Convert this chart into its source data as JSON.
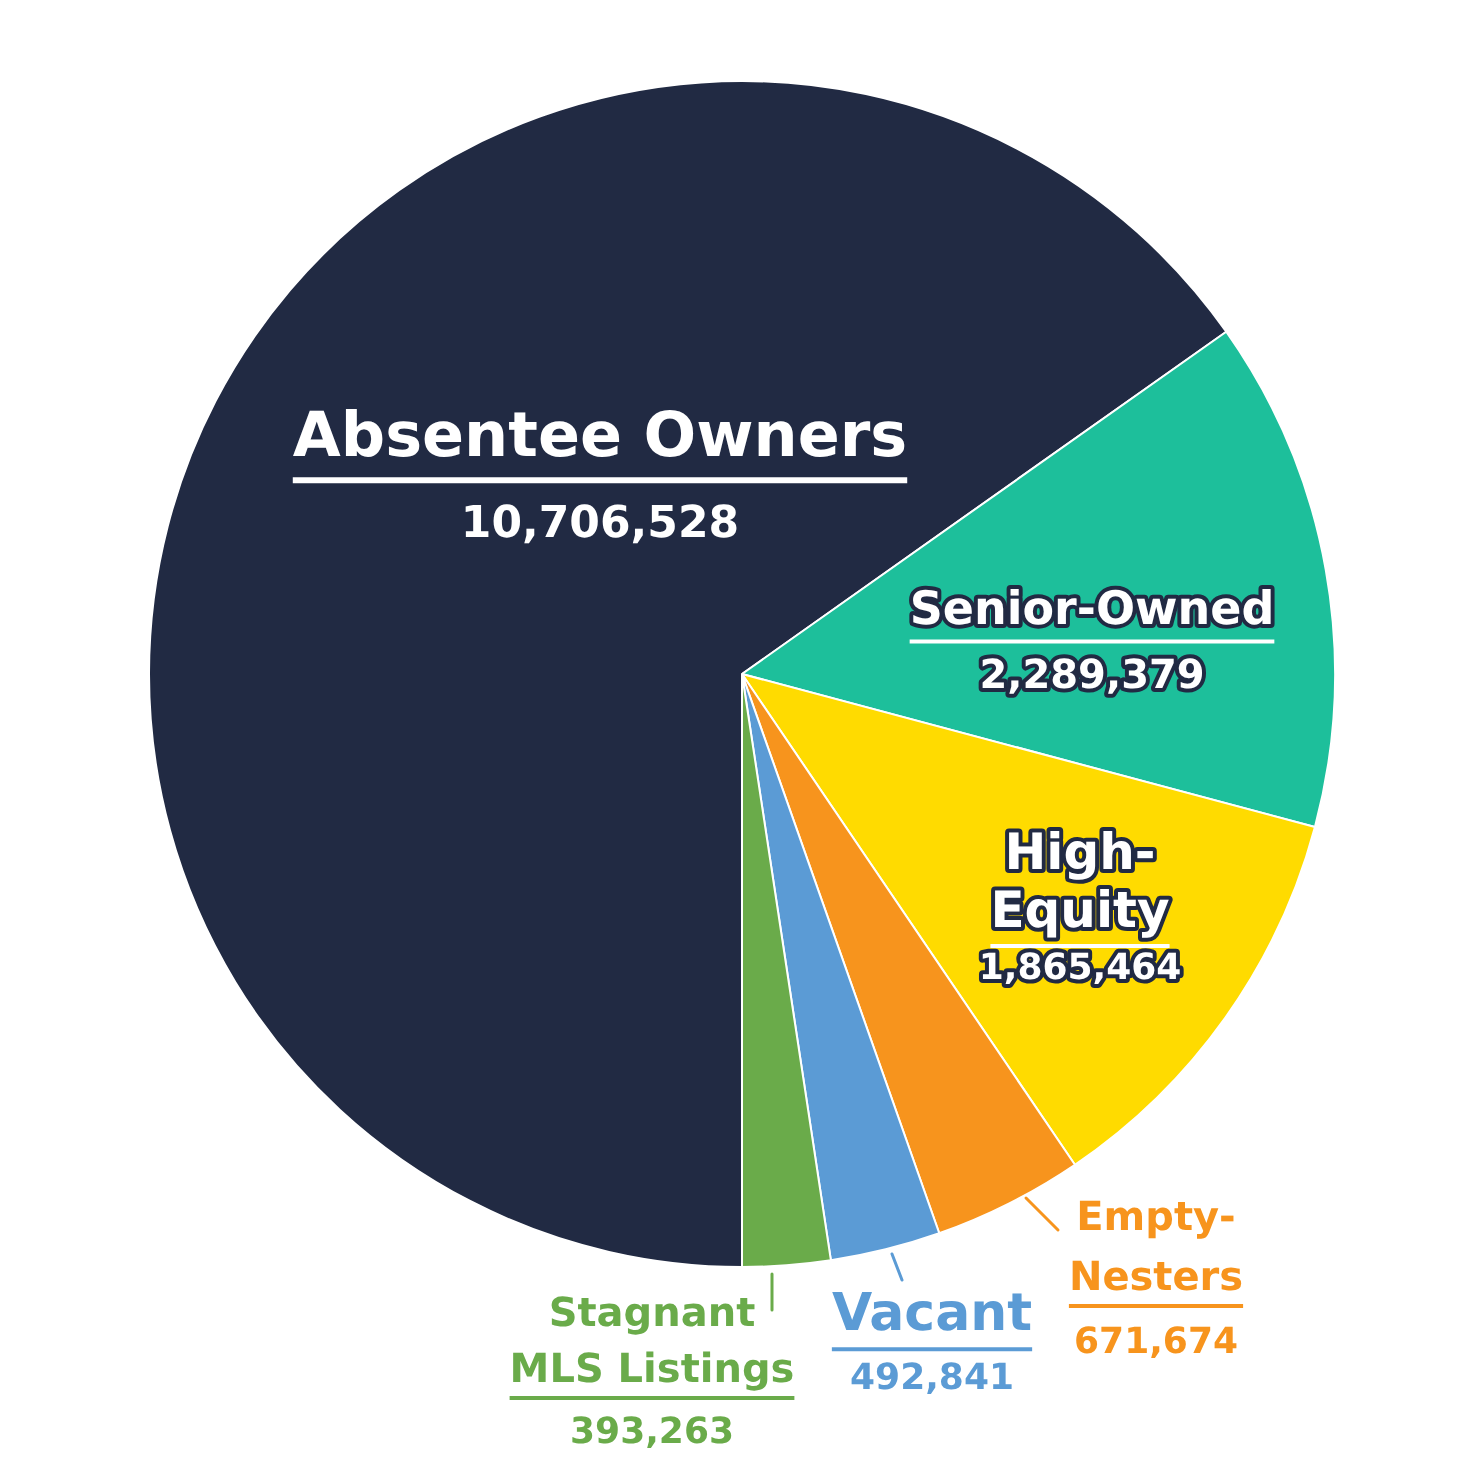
{
  "chart_data": {
    "type": "pie",
    "categories": [
      "Absentee Owners",
      "Senior-Owned",
      "High-Equity",
      "Empty-Nesters",
      "Vacant",
      "Stagnant MLS Listings"
    ],
    "values": [
      10706528,
      2289379,
      1865464,
      671674,
      492841,
      393263
    ],
    "value_labels": [
      "10,706,528",
      "2,289,379",
      "1,865,464",
      "671,674",
      "492,841",
      "393,263"
    ],
    "colors": [
      "#212a43",
      "#1dbf9b",
      "#ffdb00",
      "#f7941d",
      "#5b9bd5",
      "#6aab4a"
    ],
    "legend": false
  }
}
